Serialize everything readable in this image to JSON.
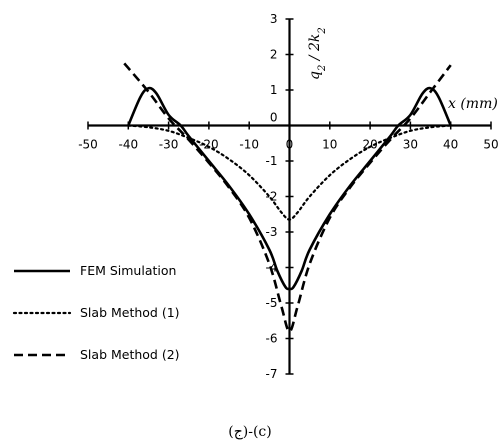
{
  "chart_data": {
    "type": "line",
    "xlabel": "x (mm)",
    "ylabel": "q2 / 2k2",
    "xlim": [
      -50,
      50
    ],
    "ylim": [
      -7,
      3
    ],
    "x_ticks": [
      -50,
      -40,
      -30,
      -20,
      -10,
      0,
      10,
      20,
      30,
      40,
      50
    ],
    "y_ticks": [
      3,
      2,
      1,
      0,
      -1,
      -2,
      -3,
      -4,
      -5,
      -6,
      -7
    ],
    "legend_position": "bottom-left",
    "caption": "(ج)-(c)",
    "series": [
      {
        "name": "FEM Simulation",
        "style": "solid",
        "x": [
          -40,
          -37,
          -35,
          -33,
          -30,
          -27,
          -25,
          -20,
          -15,
          -10,
          -5,
          -3,
          -1,
          0,
          1,
          3,
          5,
          10,
          15,
          20,
          25,
          27,
          30,
          33,
          35,
          37,
          40
        ],
        "y": [
          0.0,
          0.8,
          1.05,
          0.9,
          0.3,
          0.0,
          -0.3,
          -1.0,
          -1.7,
          -2.5,
          -3.5,
          -4.1,
          -4.55,
          -4.6,
          -4.55,
          -4.1,
          -3.5,
          -2.5,
          -1.7,
          -1.0,
          -0.3,
          0.0,
          0.3,
          0.9,
          1.05,
          0.8,
          0.0
        ]
      },
      {
        "name": "Slab Method (1)",
        "style": "dotted",
        "x": [
          -40,
          -35,
          -30,
          -25,
          -20,
          -15,
          -10,
          -5,
          -2,
          0,
          2,
          5,
          10,
          15,
          20,
          25,
          30,
          35,
          40
        ],
        "y": [
          0.0,
          -0.05,
          -0.15,
          -0.35,
          -0.6,
          -0.95,
          -1.4,
          -2.0,
          -2.45,
          -2.65,
          -2.45,
          -2.0,
          -1.4,
          -0.95,
          -0.6,
          -0.35,
          -0.15,
          -0.05,
          0.0
        ]
      },
      {
        "name": "Slab Method (2)",
        "style": "dashed",
        "x": [
          -41,
          -35,
          -30,
          -25,
          -20,
          -15,
          -10,
          -5,
          -2,
          0,
          2,
          5,
          10,
          15,
          20,
          25,
          30,
          35,
          40
        ],
        "y": [
          1.75,
          0.95,
          0.2,
          -0.4,
          -1.05,
          -1.75,
          -2.6,
          -3.9,
          -5.1,
          -5.8,
          -5.1,
          -3.9,
          -2.6,
          -1.75,
          -1.05,
          -0.4,
          0.2,
          0.95,
          1.7
        ]
      }
    ]
  }
}
